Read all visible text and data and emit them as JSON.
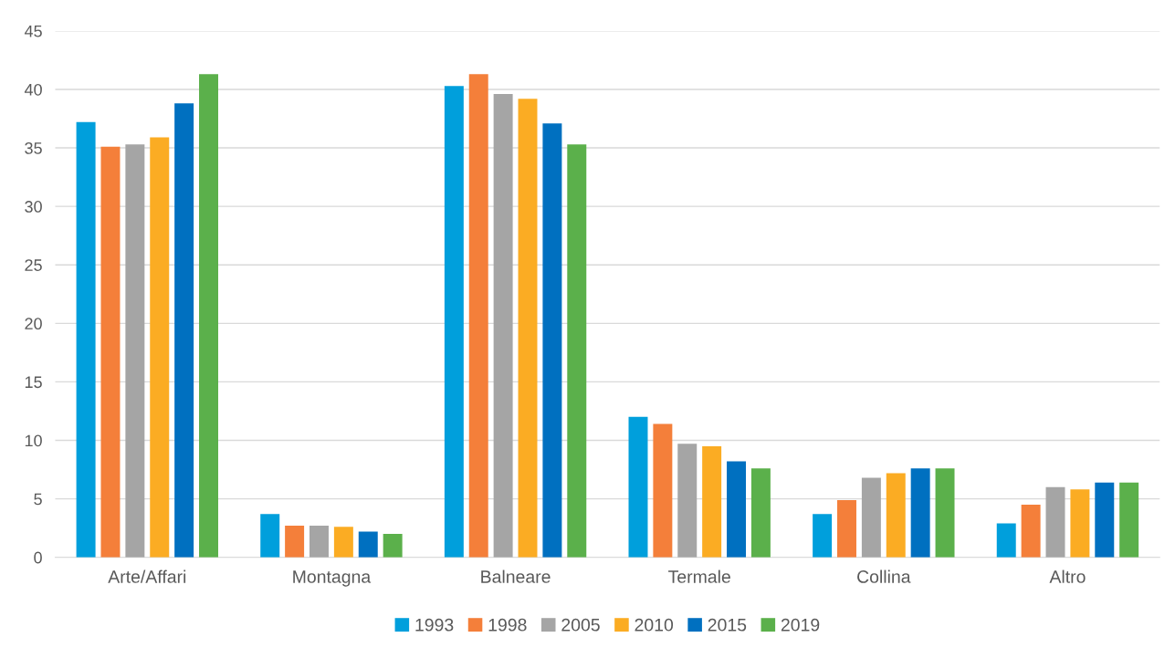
{
  "chart_data": {
    "type": "bar",
    "categories": [
      "Arte/Affari",
      "Montagna",
      "Balneare",
      "Termale",
      "Collina",
      "Altro"
    ],
    "series": [
      {
        "name": "1993",
        "color": "#009fdc",
        "values": [
          37.2,
          3.7,
          40.3,
          12.0,
          3.7,
          2.9
        ]
      },
      {
        "name": "1998",
        "color": "#f47f3a",
        "values": [
          35.1,
          2.7,
          41.3,
          11.4,
          4.9,
          4.5
        ]
      },
      {
        "name": "2005",
        "color": "#a5a5a5",
        "values": [
          35.3,
          2.7,
          39.6,
          9.7,
          6.8,
          6.0
        ]
      },
      {
        "name": "2010",
        "color": "#fbac23",
        "values": [
          35.9,
          2.6,
          39.2,
          9.5,
          7.2,
          5.8
        ]
      },
      {
        "name": "2015",
        "color": "#0070c0",
        "values": [
          38.8,
          2.2,
          37.1,
          8.2,
          7.6,
          6.4
        ]
      },
      {
        "name": "2019",
        "color": "#5bb04b",
        "values": [
          41.3,
          2.0,
          35.3,
          7.6,
          7.6,
          6.4
        ]
      }
    ],
    "ylim": [
      0,
      45
    ],
    "yticks": [
      0,
      5,
      10,
      15,
      20,
      25,
      30,
      35,
      40,
      45
    ],
    "grid": "y",
    "legend": "bottom"
  }
}
